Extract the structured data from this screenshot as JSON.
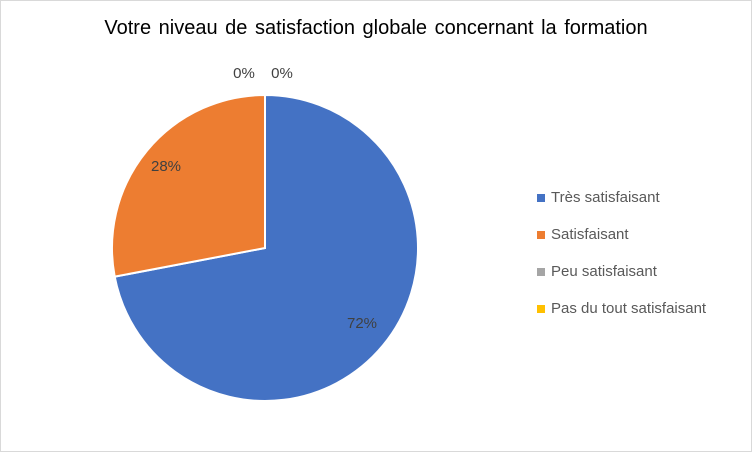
{
  "chart_data": {
    "type": "pie",
    "title": "Votre niveau de satisfaction globale concernant la formation",
    "categories": [
      "Très satisfaisant",
      "Satisfaisant",
      "Peu satisfaisant",
      "Pas du tout satisfaisant"
    ],
    "values": [
      72,
      28,
      0,
      0
    ],
    "data_labels": [
      "72%",
      "28%",
      "0%",
      "0%"
    ],
    "colors": [
      "#4472C4",
      "#ED7D31",
      "#A5A5A5",
      "#FFC000"
    ],
    "legend_position": "right"
  }
}
